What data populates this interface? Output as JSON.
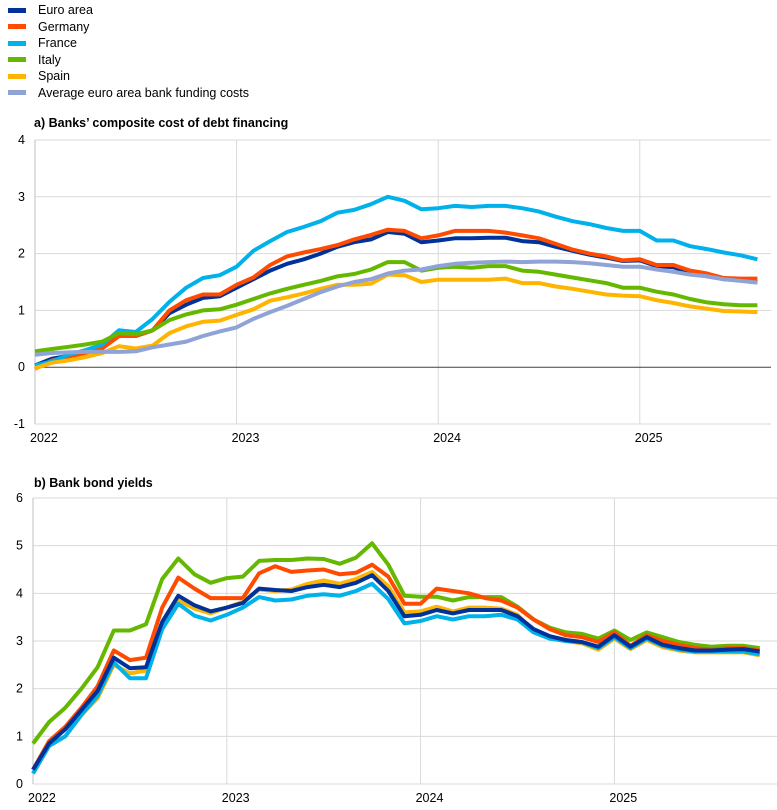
{
  "legend": [
    {
      "name": "Euro area",
      "color": "#003299"
    },
    {
      "name": "Germany",
      "color": "#ff4b00"
    },
    {
      "name": "France",
      "color": "#00b1ea"
    },
    {
      "name": "Italy",
      "color": "#65b800"
    },
    {
      "name": "Spain",
      "color": "#ffb400"
    },
    {
      "name": "Average euro area bank funding costs",
      "color": "#8fa3d6"
    }
  ],
  "chart_data": [
    {
      "type": "line",
      "title": "a) Banks’ composite cost of debt financing",
      "x_tick_labels": [
        "2022",
        "2023",
        "2024",
        "2025"
      ],
      "x_start": "2022-01",
      "x_frequency": "monthly",
      "ylim": [
        -1,
        4
      ],
      "y_ticks": [
        -1,
        0,
        1,
        2,
        3,
        4
      ],
      "grid": true,
      "series": [
        {
          "name": "Euro area",
          "color": "#003299",
          "values": [
            0.03,
            0.15,
            0.2,
            0.28,
            0.37,
            0.55,
            0.55,
            0.65,
            0.95,
            1.1,
            1.22,
            1.25,
            1.4,
            1.55,
            1.7,
            1.82,
            1.9,
            2.0,
            2.12,
            2.2,
            2.25,
            2.38,
            2.35,
            2.2,
            2.23,
            2.27,
            2.27,
            2.28,
            2.28,
            2.22,
            2.2,
            2.12,
            2.05,
            1.98,
            1.93,
            1.87,
            1.88,
            1.78,
            1.76,
            1.66,
            1.6,
            1.55,
            1.53,
            1.5
          ]
        },
        {
          "name": "Germany",
          "color": "#ff4b00",
          "values": [
            -0.03,
            0.12,
            0.18,
            0.25,
            0.33,
            0.55,
            0.55,
            0.65,
            1.0,
            1.18,
            1.28,
            1.28,
            1.45,
            1.58,
            1.8,
            1.95,
            2.02,
            2.08,
            2.15,
            2.25,
            2.33,
            2.42,
            2.4,
            2.27,
            2.32,
            2.4,
            2.4,
            2.4,
            2.37,
            2.32,
            2.27,
            2.17,
            2.07,
            2.0,
            1.95,
            1.88,
            1.9,
            1.8,
            1.8,
            1.7,
            1.65,
            1.57,
            1.56,
            1.56
          ]
        },
        {
          "name": "France",
          "color": "#00b1ea",
          "values": [
            0.03,
            0.1,
            0.22,
            0.3,
            0.4,
            0.65,
            0.62,
            0.85,
            1.15,
            1.4,
            1.57,
            1.62,
            1.77,
            2.05,
            2.22,
            2.38,
            2.47,
            2.57,
            2.72,
            2.77,
            2.87,
            3.0,
            2.93,
            2.78,
            2.8,
            2.84,
            2.82,
            2.84,
            2.84,
            2.8,
            2.74,
            2.65,
            2.57,
            2.52,
            2.45,
            2.4,
            2.4,
            2.23,
            2.23,
            2.13,
            2.08,
            2.02,
            1.97,
            1.9
          ]
        },
        {
          "name": "Italy",
          "color": "#65b800",
          "values": [
            0.28,
            0.32,
            0.36,
            0.4,
            0.45,
            0.6,
            0.58,
            0.65,
            0.83,
            0.93,
            1.0,
            1.02,
            1.1,
            1.2,
            1.3,
            1.38,
            1.45,
            1.52,
            1.6,
            1.64,
            1.72,
            1.85,
            1.85,
            1.7,
            1.75,
            1.77,
            1.75,
            1.78,
            1.78,
            1.7,
            1.68,
            1.63,
            1.58,
            1.53,
            1.48,
            1.4,
            1.4,
            1.33,
            1.28,
            1.2,
            1.14,
            1.11,
            1.09,
            1.09
          ]
        },
        {
          "name": "Spain",
          "color": "#ffb400",
          "values": [
            -0.02,
            0.08,
            0.12,
            0.18,
            0.25,
            0.37,
            0.33,
            0.38,
            0.6,
            0.72,
            0.8,
            0.82,
            0.92,
            1.02,
            1.17,
            1.23,
            1.3,
            1.38,
            1.45,
            1.45,
            1.47,
            1.63,
            1.62,
            1.5,
            1.54,
            1.54,
            1.54,
            1.54,
            1.56,
            1.48,
            1.48,
            1.42,
            1.38,
            1.33,
            1.28,
            1.26,
            1.25,
            1.18,
            1.13,
            1.07,
            1.03,
            0.99,
            0.98,
            0.97
          ]
        },
        {
          "name": "Average euro area bank funding costs",
          "color": "#8fa3d6",
          "values": [
            0.22,
            0.25,
            0.26,
            0.27,
            0.27,
            0.27,
            0.28,
            0.35,
            0.4,
            0.45,
            0.55,
            0.63,
            0.7,
            0.85,
            0.97,
            1.08,
            1.2,
            1.32,
            1.42,
            1.5,
            1.55,
            1.65,
            1.7,
            1.72,
            1.78,
            1.82,
            1.84,
            1.85,
            1.86,
            1.85,
            1.86,
            1.86,
            1.85,
            1.83,
            1.8,
            1.77,
            1.77,
            1.72,
            1.68,
            1.63,
            1.6,
            1.55,
            1.52,
            1.49
          ]
        }
      ]
    },
    {
      "type": "line",
      "title": "b) Bank bond yields",
      "x_tick_labels": [
        "2022",
        "2023",
        "2024",
        "2025"
      ],
      "x_start": "2022-01",
      "x_frequency": "monthly",
      "ylim": [
        0,
        6
      ],
      "y_ticks": [
        0,
        1,
        2,
        3,
        4,
        5,
        6
      ],
      "grid": true,
      "series": [
        {
          "name": "Italy",
          "color": "#65b800",
          "values": [
            0.85,
            1.3,
            1.6,
            2.0,
            2.45,
            3.22,
            3.22,
            3.35,
            4.3,
            4.73,
            4.4,
            4.22,
            4.32,
            4.35,
            4.68,
            4.7,
            4.7,
            4.73,
            4.72,
            4.62,
            4.75,
            5.05,
            4.6,
            3.95,
            3.93,
            3.93,
            3.85,
            3.92,
            3.92,
            3.92,
            3.72,
            3.45,
            3.28,
            3.18,
            3.15,
            3.05,
            3.22,
            3.02,
            3.18,
            3.08,
            2.98,
            2.92,
            2.88,
            2.9,
            2.9,
            2.85
          ]
        },
        {
          "name": "Germany",
          "color": "#ff4b00",
          "values": [
            0.3,
            0.9,
            1.2,
            1.6,
            2.05,
            2.8,
            2.6,
            2.65,
            3.7,
            4.33,
            4.1,
            3.9,
            3.9,
            3.9,
            4.42,
            4.57,
            4.45,
            4.48,
            4.5,
            4.4,
            4.43,
            4.6,
            4.35,
            3.78,
            3.78,
            4.1,
            4.05,
            4.0,
            3.9,
            3.85,
            3.7,
            3.45,
            3.25,
            3.12,
            3.08,
            2.98,
            3.18,
            2.9,
            3.12,
            3.0,
            2.92,
            2.85,
            2.82,
            2.85,
            2.85,
            2.8
          ]
        },
        {
          "name": "Spain",
          "color": "#ffb400",
          "values": [
            0.22,
            0.8,
            1.0,
            1.45,
            1.8,
            2.5,
            2.32,
            2.38,
            3.35,
            3.85,
            3.68,
            3.58,
            3.7,
            3.82,
            4.08,
            4.05,
            4.08,
            4.2,
            4.27,
            4.2,
            4.3,
            4.45,
            4.15,
            3.6,
            3.62,
            3.72,
            3.62,
            3.7,
            3.7,
            3.68,
            3.55,
            3.22,
            3.08,
            3.0,
            2.95,
            2.82,
            3.05,
            2.83,
            3.02,
            2.87,
            2.8,
            2.76,
            2.76,
            2.76,
            2.76,
            2.7
          ]
        },
        {
          "name": "France",
          "color": "#00b1ea",
          "values": [
            0.22,
            0.8,
            1.0,
            1.45,
            1.85,
            2.55,
            2.22,
            2.22,
            3.25,
            3.78,
            3.53,
            3.43,
            3.55,
            3.7,
            3.92,
            3.85,
            3.87,
            3.95,
            3.98,
            3.95,
            4.05,
            4.2,
            3.88,
            3.37,
            3.42,
            3.52,
            3.45,
            3.52,
            3.52,
            3.55,
            3.45,
            3.18,
            3.05,
            3.0,
            2.97,
            2.85,
            3.08,
            2.85,
            3.05,
            2.9,
            2.82,
            2.78,
            2.78,
            2.78,
            2.78,
            2.72
          ]
        },
        {
          "name": "Euro area",
          "color": "#003299",
          "values": [
            0.3,
            0.85,
            1.15,
            1.55,
            1.95,
            2.65,
            2.43,
            2.45,
            3.4,
            3.95,
            3.75,
            3.62,
            3.7,
            3.8,
            4.1,
            4.07,
            4.05,
            4.13,
            4.18,
            4.13,
            4.22,
            4.38,
            4.05,
            3.52,
            3.55,
            3.65,
            3.58,
            3.65,
            3.65,
            3.65,
            3.52,
            3.25,
            3.1,
            3.02,
            2.98,
            2.88,
            3.12,
            2.88,
            3.08,
            2.92,
            2.85,
            2.8,
            2.8,
            2.82,
            2.83,
            2.78
          ]
        }
      ]
    }
  ]
}
